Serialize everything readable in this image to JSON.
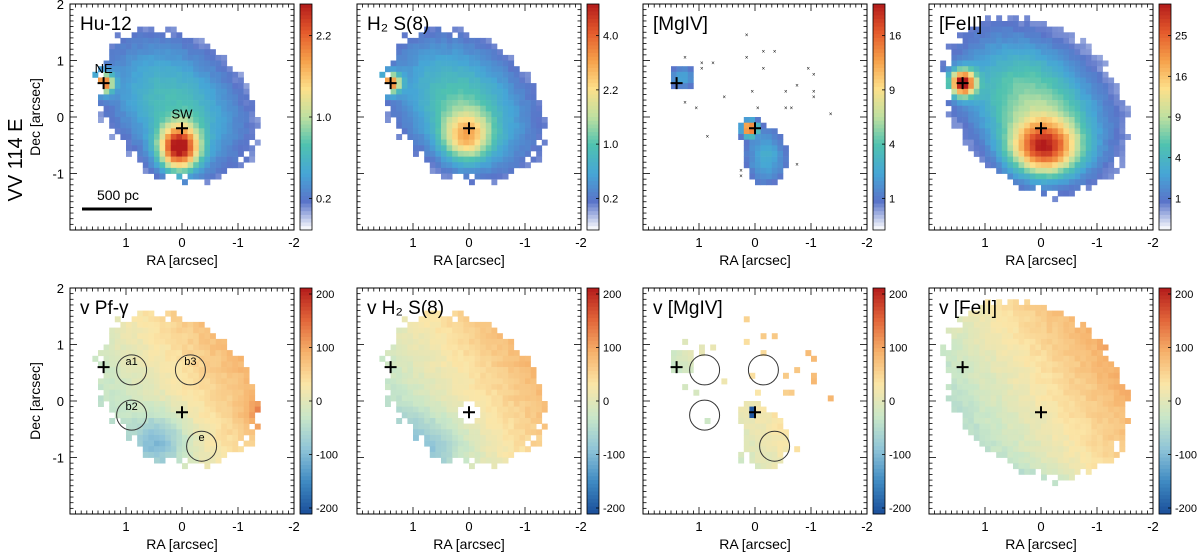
{
  "figure": {
    "row_label": "VV 114 E",
    "xlabel": "RA [arcsec]",
    "ylabel": "Dec [arcsec]",
    "scale_bar_label": "500 pc",
    "x_ticks": [
      "1",
      "0",
      "-1",
      "-2"
    ],
    "y_ticks": [
      "2",
      "1",
      "0",
      "-1"
    ]
  },
  "colors": {
    "cmap": [
      "#ffffff",
      "#5a74c9",
      "#46a6d6",
      "#4fc2b0",
      "#bfe0a0",
      "#fde08a",
      "#f5a04a",
      "#e45a2c",
      "#b31b1b"
    ],
    "vmap": [
      "#1b4f9a",
      "#3f8ac2",
      "#8fc4d8",
      "#c9e7c8",
      "#fbe6a8",
      "#f6b26b",
      "#e2663a",
      "#b31b1b"
    ]
  },
  "chart_data": [
    {
      "type": "heatmap",
      "id": "hu12",
      "title": "Hu-12",
      "xlabel": "RA [arcsec]",
      "ylabel": "Dec [arcsec]",
      "xlim": [
        2,
        -2
      ],
      "ylim": [
        -2,
        2
      ],
      "colorbar_ticks": [
        "2.2",
        "1.0",
        "0.2"
      ],
      "nuclei": [
        {
          "name": "NE",
          "ra": 1.4,
          "dec": 0.6
        },
        {
          "name": "SW",
          "ra": 0.0,
          "dec": -0.2
        }
      ],
      "apertures": []
    },
    {
      "type": "heatmap",
      "id": "h2",
      "title": "H₂ S(8)",
      "xlabel": "RA [arcsec]",
      "ylabel": "",
      "xlim": [
        2,
        -2
      ],
      "ylim": [
        -2,
        2
      ],
      "colorbar_ticks": [
        "4.0",
        "2.2",
        "1.0",
        "0.2"
      ],
      "nuclei": [
        {
          "name": "",
          "ra": 1.4,
          "dec": 0.6
        },
        {
          "name": "",
          "ra": 0.0,
          "dec": -0.2
        }
      ],
      "apertures": []
    },
    {
      "type": "heatmap",
      "id": "mgiv",
      "title": "[MgIV]",
      "xlabel": "RA [arcsec]",
      "ylabel": "",
      "xlim": [
        2,
        -2
      ],
      "ylim": [
        -2,
        2
      ],
      "colorbar_ticks": [
        "16",
        "9",
        "4",
        "1"
      ],
      "nuclei": [
        {
          "name": "",
          "ra": 1.4,
          "dec": 0.6
        },
        {
          "name": "",
          "ra": 0.0,
          "dec": -0.2
        }
      ],
      "apertures": []
    },
    {
      "type": "heatmap",
      "id": "feii",
      "title": "[FeII]",
      "xlabel": "RA [arcsec]",
      "ylabel": "",
      "xlim": [
        2,
        -2
      ],
      "ylim": [
        -2,
        2
      ],
      "colorbar_ticks": [
        "25",
        "16",
        "9",
        "4",
        "1"
      ],
      "nuclei": [
        {
          "name": "",
          "ra": 1.4,
          "dec": 0.6
        },
        {
          "name": "",
          "ra": 0.0,
          "dec": -0.2
        }
      ],
      "apertures": []
    },
    {
      "type": "heatmap",
      "id": "vpf",
      "title": "v Pf-γ",
      "xlabel": "RA [arcsec]",
      "ylabel": "Dec [arcsec]",
      "xlim": [
        2,
        -2
      ],
      "ylim": [
        -2,
        2
      ],
      "colorbar_ticks": [
        "200",
        "100",
        "0",
        "-100",
        "-200"
      ],
      "nuclei": [
        {
          "name": "",
          "ra": 1.4,
          "dec": 0.6
        },
        {
          "name": "",
          "ra": 0.0,
          "dec": -0.2
        }
      ],
      "apertures": [
        {
          "label": "a1",
          "ra": 0.9,
          "dec": 0.55
        },
        {
          "label": "b3",
          "ra": -0.15,
          "dec": 0.55
        },
        {
          "label": "b2",
          "ra": 0.9,
          "dec": -0.25
        },
        {
          "label": "e",
          "ra": -0.35,
          "dec": -0.8
        }
      ]
    },
    {
      "type": "heatmap",
      "id": "vh2",
      "title": "v H₂ S(8)",
      "xlabel": "RA [arcsec]",
      "ylabel": "",
      "xlim": [
        2,
        -2
      ],
      "ylim": [
        -2,
        2
      ],
      "colorbar_ticks": [
        "200",
        "100",
        "0",
        "-100",
        "-200"
      ],
      "nuclei": [
        {
          "name": "",
          "ra": 1.4,
          "dec": 0.6
        },
        {
          "name": "",
          "ra": 0.0,
          "dec": -0.2
        }
      ],
      "apertures": []
    },
    {
      "type": "heatmap",
      "id": "vmgiv",
      "title": "v [MgIV]",
      "xlabel": "RA [arcsec]",
      "ylabel": "",
      "xlim": [
        2,
        -2
      ],
      "ylim": [
        -2,
        2
      ],
      "colorbar_ticks": [
        "200",
        "100",
        "0",
        "-100",
        "-200"
      ],
      "nuclei": [
        {
          "name": "",
          "ra": 1.4,
          "dec": 0.6
        },
        {
          "name": "",
          "ra": 0.0,
          "dec": -0.2
        }
      ],
      "apertures": [
        {
          "label": "",
          "ra": 0.9,
          "dec": 0.55
        },
        {
          "label": "",
          "ra": -0.15,
          "dec": 0.55
        },
        {
          "label": "",
          "ra": 0.9,
          "dec": -0.25
        },
        {
          "label": "",
          "ra": -0.35,
          "dec": -0.8
        }
      ]
    },
    {
      "type": "heatmap",
      "id": "vfeii",
      "title": "v [FeII]",
      "xlabel": "RA [arcsec]",
      "ylabel": "",
      "xlim": [
        2,
        -2
      ],
      "ylim": [
        -2,
        2
      ],
      "colorbar_ticks": [
        "200",
        "100",
        "0",
        "-100",
        "-200"
      ],
      "nuclei": [
        {
          "name": "",
          "ra": 1.4,
          "dec": 0.6
        },
        {
          "name": "",
          "ra": 0.0,
          "dec": -0.2
        }
      ],
      "apertures": []
    }
  ]
}
